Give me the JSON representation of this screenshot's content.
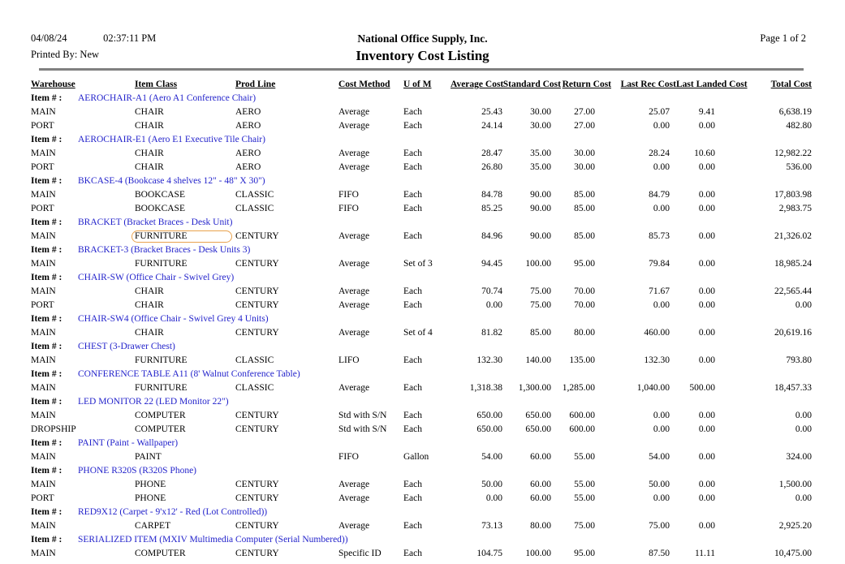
{
  "header": {
    "date": "04/08/24",
    "time": "02:37:11 PM",
    "printed_by": "Printed By: New",
    "company": "National Office Supply, Inc.",
    "title": "Inventory Cost Listing",
    "page_label": "Page 1 of  2"
  },
  "colors": {
    "item_link": "#2323cb",
    "divider": "#808080",
    "highlight_outline": "#e9a24e"
  },
  "table": {
    "item_label": "Item # :",
    "columns": [
      "Warehouse",
      "Item Class",
      "Prod Line",
      "Cost Method",
      "U of M",
      "Average Cost",
      "Standard Cost",
      "Return Cost",
      "Last Rec Cost",
      "Last Landed Cost",
      "Total Cost"
    ],
    "highlight": {
      "item_index": 3,
      "row_index": 0,
      "col_index": 1
    },
    "items": [
      {
        "item": "AEROCHAIR-A1 (Aero A1 Conference Chair)",
        "rows": [
          [
            "MAIN",
            "CHAIR",
            "AERO",
            "Average",
            "Each",
            "25.43",
            "30.00",
            "27.00",
            "25.07",
            "9.41",
            "6,638.19"
          ],
          [
            "PORT",
            "CHAIR",
            "AERO",
            "Average",
            "Each",
            "24.14",
            "30.00",
            "27.00",
            "0.00",
            "0.00",
            "482.80"
          ]
        ]
      },
      {
        "item": "AEROCHAIR-E1 (Aero E1 Executive Tile Chair)",
        "rows": [
          [
            "MAIN",
            "CHAIR",
            "AERO",
            "Average",
            "Each",
            "28.47",
            "35.00",
            "30.00",
            "28.24",
            "10.60",
            "12,982.22"
          ],
          [
            "PORT",
            "CHAIR",
            "AERO",
            "Average",
            "Each",
            "26.80",
            "35.00",
            "30.00",
            "0.00",
            "0.00",
            "536.00"
          ]
        ]
      },
      {
        "item": "BKCASE-4 (Bookcase 4 shelves 12\" - 48\" X 30\")",
        "rows": [
          [
            "MAIN",
            "BOOKCASE",
            "CLASSIC",
            "FIFO",
            "Each",
            "84.78",
            "90.00",
            "85.00",
            "84.79",
            "0.00",
            "17,803.98"
          ],
          [
            "PORT",
            "BOOKCASE",
            "CLASSIC",
            "FIFO",
            "Each",
            "85.25",
            "90.00",
            "85.00",
            "0.00",
            "0.00",
            "2,983.75"
          ]
        ]
      },
      {
        "item": "BRACKET (Bracket Braces - Desk Unit)",
        "rows": [
          [
            "MAIN",
            "FURNITURE",
            "CENTURY",
            "Average",
            "Each",
            "84.96",
            "90.00",
            "85.00",
            "85.73",
            "0.00",
            "21,326.02"
          ]
        ]
      },
      {
        "item": "BRACKET-3 (Bracket Braces - Desk Units 3)",
        "rows": [
          [
            "MAIN",
            "FURNITURE",
            "CENTURY",
            "Average",
            "Set of 3",
            "94.45",
            "100.00",
            "95.00",
            "79.84",
            "0.00",
            "18,985.24"
          ]
        ]
      },
      {
        "item": "CHAIR-SW (Office Chair - Swivel Grey)",
        "rows": [
          [
            "MAIN",
            "CHAIR",
            "CENTURY",
            "Average",
            "Each",
            "70.74",
            "75.00",
            "70.00",
            "71.67",
            "0.00",
            "22,565.44"
          ],
          [
            "PORT",
            "CHAIR",
            "CENTURY",
            "Average",
            "Each",
            "0.00",
            "75.00",
            "70.00",
            "0.00",
            "0.00",
            "0.00"
          ]
        ]
      },
      {
        "item": "CHAIR-SW4 (Office Chair - Swivel Grey 4 Units)",
        "rows": [
          [
            "MAIN",
            "CHAIR",
            "CENTURY",
            "Average",
            "Set of 4",
            "81.82",
            "85.00",
            "80.00",
            "460.00",
            "0.00",
            "20,619.16"
          ]
        ]
      },
      {
        "item": "CHEST (3-Drawer Chest)",
        "rows": [
          [
            "MAIN",
            "FURNITURE",
            "CLASSIC",
            "LIFO",
            "Each",
            "132.30",
            "140.00",
            "135.00",
            "132.30",
            "0.00",
            "793.80"
          ]
        ]
      },
      {
        "item": "CONFERENCE TABLE A11 (8' Walnut Conference Table)",
        "rows": [
          [
            "MAIN",
            "FURNITURE",
            "CLASSIC",
            "Average",
            "Each",
            "1,318.38",
            "1,300.00",
            "1,285.00",
            "1,040.00",
            "500.00",
            "18,457.33"
          ]
        ]
      },
      {
        "item": "LED MONITOR 22 (LED Monitor 22\")",
        "rows": [
          [
            "MAIN",
            "COMPUTER",
            "CENTURY",
            "Std with S/N",
            "Each",
            "650.00",
            "650.00",
            "600.00",
            "0.00",
            "0.00",
            "0.00"
          ],
          [
            "DROPSHIP",
            "COMPUTER",
            "CENTURY",
            "Std with S/N",
            "Each",
            "650.00",
            "650.00",
            "600.00",
            "0.00",
            "0.00",
            "0.00"
          ]
        ]
      },
      {
        "item": "PAINT (Paint - Wallpaper)",
        "rows": [
          [
            "MAIN",
            "PAINT",
            "",
            "FIFO",
            "Gallon",
            "54.00",
            "60.00",
            "55.00",
            "54.00",
            "0.00",
            "324.00"
          ]
        ]
      },
      {
        "item": "PHONE R320S (R320S Phone)",
        "rows": [
          [
            "MAIN",
            "PHONE",
            "CENTURY",
            "Average",
            "Each",
            "50.00",
            "60.00",
            "55.00",
            "50.00",
            "0.00",
            "1,500.00"
          ],
          [
            "PORT",
            "PHONE",
            "CENTURY",
            "Average",
            "Each",
            "0.00",
            "60.00",
            "55.00",
            "0.00",
            "0.00",
            "0.00"
          ]
        ]
      },
      {
        "item": "RED9X12 (Carpet - 9'x12' - Red (Lot Controlled))",
        "rows": [
          [
            "MAIN",
            "CARPET",
            "CENTURY",
            "Average",
            "Each",
            "73.13",
            "80.00",
            "75.00",
            "75.00",
            "0.00",
            "2,925.20"
          ]
        ]
      },
      {
        "item": "SERIALIZED ITEM (MXIV Multimedia Computer (Serial Numbered))",
        "rows": [
          [
            "MAIN",
            "COMPUTER",
            "CENTURY",
            "Specific ID",
            "Each",
            "104.75",
            "100.00",
            "95.00",
            "87.50",
            "11.11",
            "10,475.00"
          ]
        ]
      }
    ]
  }
}
